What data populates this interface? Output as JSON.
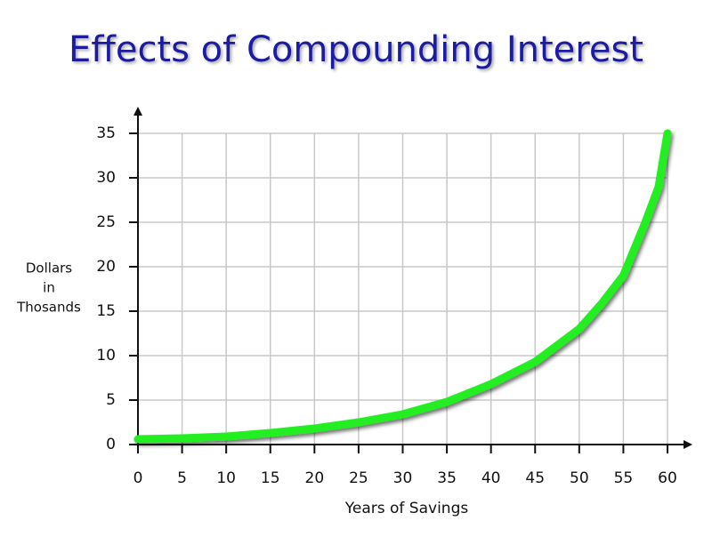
{
  "chart_data": {
    "type": "line",
    "title": "Effects of Compounding Interest",
    "xlabel": "Years of Savings",
    "ylabel": [
      "Dollars",
      "in",
      "Thosands"
    ],
    "x": [
      0,
      5,
      10,
      15,
      20,
      25,
      30,
      35,
      40,
      45,
      50,
      52.5,
      55,
      57.5,
      59,
      60
    ],
    "values": [
      0.6,
      0.7,
      0.9,
      1.3,
      1.8,
      2.5,
      3.4,
      4.8,
      6.8,
      9.3,
      13,
      15.8,
      19,
      25,
      29,
      35
    ],
    "color": "#22ee22",
    "xlim": [
      0,
      60
    ],
    "xticks": [
      0,
      5,
      10,
      15,
      20,
      25,
      30,
      35,
      40,
      45,
      50,
      55,
      60
    ],
    "ylim": [
      0,
      35
    ],
    "yticks": [
      0,
      5,
      10,
      15,
      20,
      25,
      30,
      35
    ],
    "grid": true
  }
}
